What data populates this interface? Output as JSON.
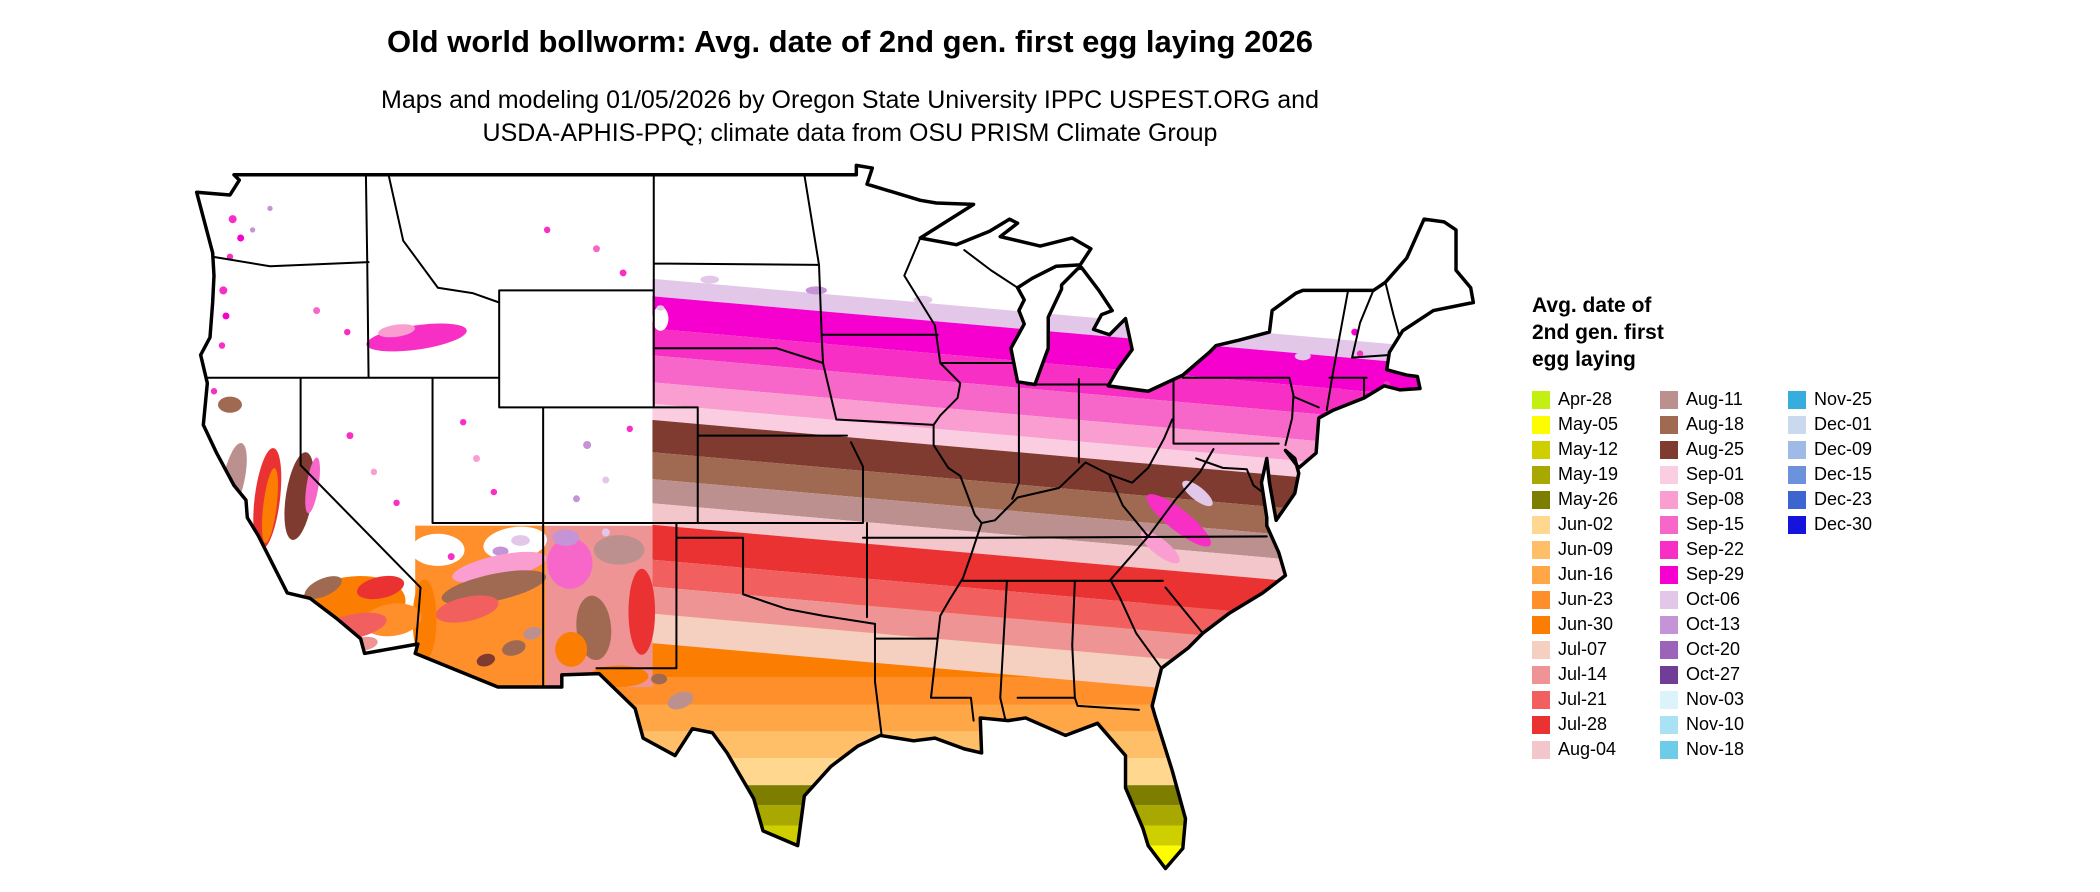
{
  "title": "Old world bollworm: Avg. date of 2nd gen. first egg laying 2026",
  "subtitle": {
    "line1": "Maps and modeling 01/05/2026 by Oregon State University IPPC USPEST.ORG and",
    "line2": "USDA-APHIS-PPQ; climate data from OSU PRISM Climate Group"
  },
  "legend": {
    "title_lines": [
      "Avg. date of",
      "2nd gen. first",
      "egg laying"
    ],
    "columns": [
      {
        "items": [
          {
            "label": "Apr-28",
            "color": "#C4EF13"
          },
          {
            "label": "May-05",
            "color": "#FDFD00"
          },
          {
            "label": "May-12",
            "color": "#CFCF00"
          },
          {
            "label": "May-19",
            "color": "#A8A800"
          },
          {
            "label": "May-26",
            "color": "#7D7D00"
          },
          {
            "label": "Jun-02",
            "color": "#FFD78F"
          },
          {
            "label": "Jun-09",
            "color": "#FFBE68"
          },
          {
            "label": "Jun-16",
            "color": "#FFA647"
          },
          {
            "label": "Jun-23",
            "color": "#FF8F2A"
          },
          {
            "label": "Jun-30",
            "color": "#FB7E03"
          },
          {
            "label": "Jul-07",
            "color": "#F5CFC0"
          },
          {
            "label": "Jul-14",
            "color": "#EF9494"
          },
          {
            "label": "Jul-21",
            "color": "#F15F5F"
          },
          {
            "label": "Jul-28",
            "color": "#EA3232"
          },
          {
            "label": "Aug-04",
            "color": "#F3C6CC"
          }
        ]
      },
      {
        "items": [
          {
            "label": "Aug-11",
            "color": "#BD9090"
          },
          {
            "label": "Aug-18",
            "color": "#A06A52"
          },
          {
            "label": "Aug-25",
            "color": "#7F3B30"
          },
          {
            "label": "Sep-01",
            "color": "#FACDE1"
          },
          {
            "label": "Sep-08",
            "color": "#FA9DD1"
          },
          {
            "label": "Sep-15",
            "color": "#F767C9"
          },
          {
            "label": "Sep-22",
            "color": "#F72FC4"
          },
          {
            "label": "Sep-29",
            "color": "#F500CE"
          },
          {
            "label": "Oct-06",
            "color": "#E2C7E9"
          },
          {
            "label": "Oct-13",
            "color": "#C494D7"
          },
          {
            "label": "Oct-20",
            "color": "#9C64B9"
          },
          {
            "label": "Oct-27",
            "color": "#703E96"
          },
          {
            "label": "Nov-03",
            "color": "#DDF3FA"
          },
          {
            "label": "Nov-10",
            "color": "#A9E2F3"
          },
          {
            "label": "Nov-18",
            "color": "#6FCCE9"
          }
        ]
      },
      {
        "items": [
          {
            "label": "Nov-25",
            "color": "#36AEDD"
          },
          {
            "label": "Dec-01",
            "color": "#CBD9EF"
          },
          {
            "label": "Dec-09",
            "color": "#9FBAE7"
          },
          {
            "label": "Dec-15",
            "color": "#6C92DC"
          },
          {
            "label": "Dec-23",
            "color": "#3C65CF"
          },
          {
            "label": "Dec-30",
            "color": "#1414DD"
          }
        ]
      }
    ]
  }
}
